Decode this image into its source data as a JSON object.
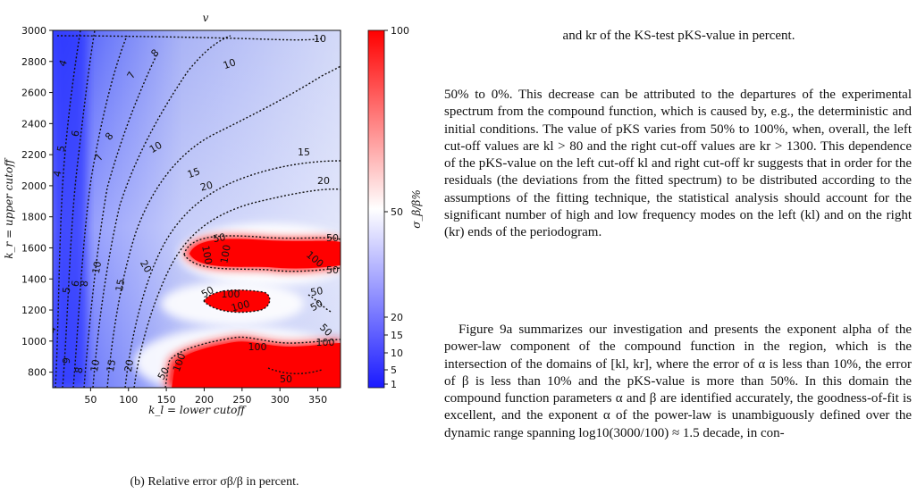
{
  "figure": {
    "panel_title": "v",
    "xlabel": "k_l = lower cutoff",
    "ylabel": "k_r = upper cutoff",
    "colorbar_label": "σ_β/β%",
    "caption": "(b) Relative error σβ/β in percent.",
    "colors": {
      "low": "#1a1aff",
      "mid": "#ffffff",
      "high": "#ff0000"
    }
  },
  "chart_data": {
    "type": "heatmap",
    "title": "v",
    "xlabel": "k_l = lower cutoff",
    "ylabel": "k_r = upper cutoff",
    "xlim": [
      0,
      380
    ],
    "ylim": [
      700,
      3000
    ],
    "x_ticks": [
      50,
      100,
      150,
      200,
      250,
      300,
      350
    ],
    "y_ticks": [
      800,
      1000,
      1200,
      1400,
      1600,
      1800,
      2000,
      2200,
      2400,
      2600,
      2800,
      3000
    ],
    "colorbar": {
      "label": "σ_β/β%",
      "ticks": [
        1,
        5,
        10,
        15,
        20,
        50,
        100
      ],
      "range": [
        0,
        100
      ]
    },
    "contour_levels": [
      4,
      5,
      6,
      7,
      8,
      10,
      15,
      20,
      50,
      100
    ],
    "red_regions": [
      {
        "kl": [
          185,
          380
        ],
        "kr": [
          1450,
          1640
        ]
      },
      {
        "kl": [
          200,
          300
        ],
        "kr": [
          1250,
          1330
        ]
      },
      {
        "kl": [
          150,
          380
        ],
        "kr": [
          850,
          1060
        ]
      }
    ]
  },
  "text": {
    "top_line": "and kr of the KS-test pKS-value in percent.",
    "p1": "50% to 0%. This decrease can be attributed to the departures of the experimental spectrum from the compound function, which is caused by, e.g., the deterministic and initial conditions. The value of pKS varies from 50% to 100%, when, overall, the left cut-off values are kl > 80 and the right cut-off values are kr > 1300. This dependence of the pKS-value on the left cut-off kl and right cut-off kr suggests that in order for the residuals (the deviations from the fitted spectrum) to be distributed according to the assumptions of the fitting technique, the statistical analysis should account for the significant number of high and low frequency modes on the left (kl) and on the right (kr) ends of the periodogram.",
    "p2": "Figure 9a summarizes our investigation and presents the exponent alpha of the power-law component of the compound function in the region, which is the intersection of the domains of [kl, kr], where the error of α is less than 10%, the error of β is less than 10% and the pKS-value is more than 50%. In this domain the compound function parameters α and β are identified accurately, the goodness-of-fit is excellent, and the exponent α of the power-law is unambiguously defined over the dynamic range spanning log10(3000/100) ≈ 1.5 decade, in con-"
  }
}
